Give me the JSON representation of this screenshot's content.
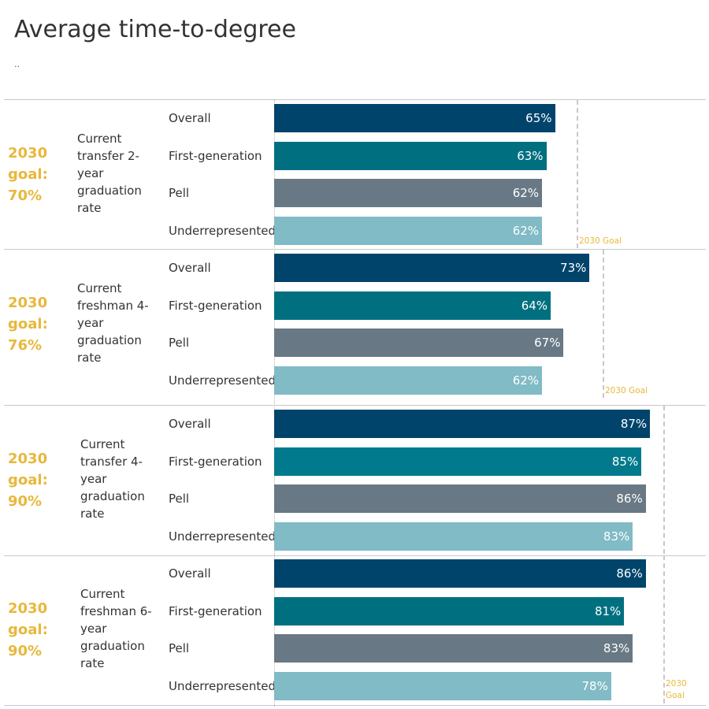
{
  "title": "Average time-to-degree",
  "subtitle": "..",
  "colors": {
    "Overall": "#00446b",
    "First-generation": "#007080",
    "Pell": "#687985",
    "Underrepresented": "#80bbc6",
    "goal": "#e8b83c",
    "first_gen_alt": "#007a8c"
  },
  "chart_data": {
    "type": "bar",
    "orientation": "horizontal",
    "categories": [
      "Overall",
      "First-generation",
      "Pell",
      "Underrepresented"
    ],
    "unit": "%",
    "xlim": [
      0,
      100
    ],
    "panels": [
      {
        "goal_label": "2030 goal: 70%",
        "goal_value": 70,
        "metric": "Current transfer 2-year graduation rate",
        "goal_marker_label": "2030 Goal",
        "values": [
          65,
          63,
          62,
          62
        ]
      },
      {
        "goal_label": "2030 goal: 76%",
        "goal_value": 76,
        "metric": "Current freshman 4-year graduation rate",
        "goal_marker_label": "2030 Goal",
        "values": [
          73,
          64,
          67,
          62
        ]
      },
      {
        "goal_label": "2030 goal: 90%",
        "goal_value": 90,
        "metric": "Current transfer 4-year graduation rate",
        "goal_marker_label": "",
        "values": [
          87,
          85,
          86,
          83
        ]
      },
      {
        "goal_label": "2030 goal: 90%",
        "goal_value": 90,
        "metric": "Current freshman 6-year graduation rate",
        "goal_marker_label": "2030 Goal",
        "values": [
          86,
          81,
          83,
          78
        ]
      }
    ]
  }
}
